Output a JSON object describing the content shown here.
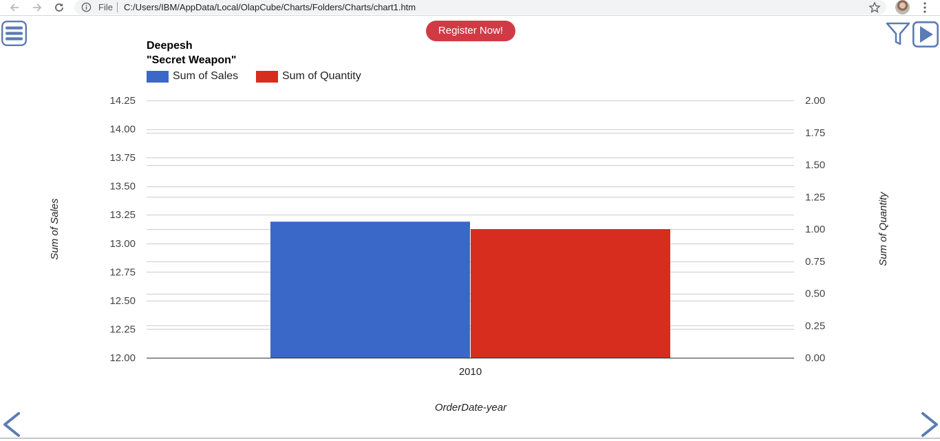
{
  "browser": {
    "scheme": "File",
    "url": "C:/Users/IBM/AppData/Local/OlapCube/Charts/Folders/Charts/chart1.htm"
  },
  "controls": {
    "register_label": "Register Now!",
    "register_color": "#d13a45",
    "accent_color": "#5b7bb4",
    "icons": [
      "menu-icon",
      "filter-icon",
      "play-icon",
      "prev-arrow-icon",
      "next-arrow-icon"
    ]
  },
  "chart_data": {
    "type": "bar",
    "title_lines": [
      "Deepesh",
      "\"Secret Weapon\""
    ],
    "categories": [
      "2010"
    ],
    "series": [
      {
        "name": "Sum of Sales",
        "axis": "left",
        "values": [
          13.19
        ],
        "color": "#3a68c8"
      },
      {
        "name": "Sum of Quantity",
        "axis": "right",
        "values": [
          1
        ],
        "color": "#d62d1f"
      }
    ],
    "xlabel": "OrderDate-year",
    "ylabel": "Sum of Sales",
    "y2label": "Sum of Quantity",
    "ylim": [
      12.0,
      14.25
    ],
    "y2lim": [
      0.0,
      2.0
    ],
    "y_ticks": [
      "12.00",
      "12.25",
      "12.50",
      "12.75",
      "13.00",
      "13.25",
      "13.50",
      "13.75",
      "14.00",
      "14.25"
    ],
    "y2_ticks": [
      "0.00",
      "0.25",
      "0.50",
      "0.75",
      "1.00",
      "1.25",
      "1.50",
      "1.75",
      "2.00"
    ],
    "grid": true,
    "legend_position": "top-left"
  }
}
